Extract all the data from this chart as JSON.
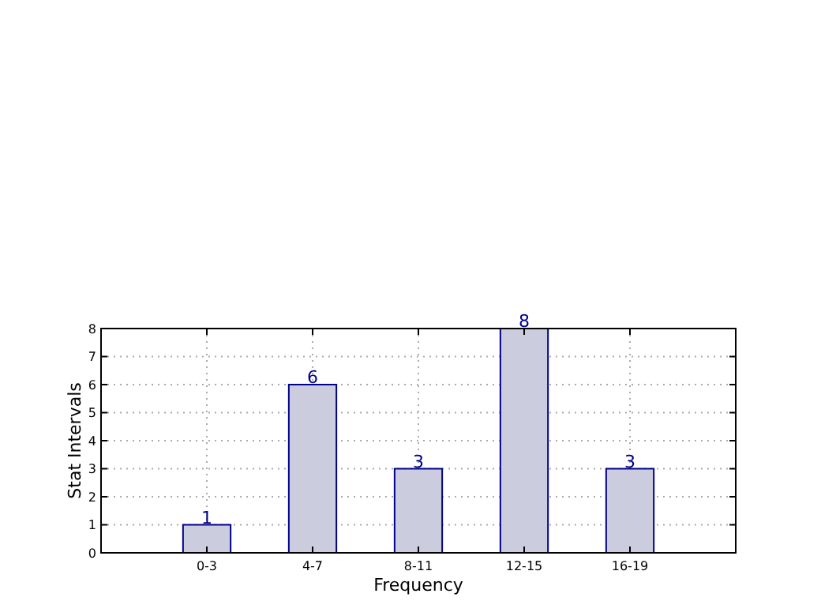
{
  "chart_data": {
    "type": "bar",
    "xlabel": "Frequency",
    "ylabel": "Stat Intervals",
    "categories": [
      "0-3",
      "4-7",
      "8-11",
      "12-15",
      "16-19"
    ],
    "values": [
      1,
      6,
      3,
      8,
      3
    ],
    "color": "#ccccdf",
    "ylim": [
      0,
      8
    ],
    "yticks": [
      0,
      1,
      2,
      3,
      4,
      5,
      6,
      7,
      8
    ],
    "grid": true,
    "data_labels": true
  }
}
